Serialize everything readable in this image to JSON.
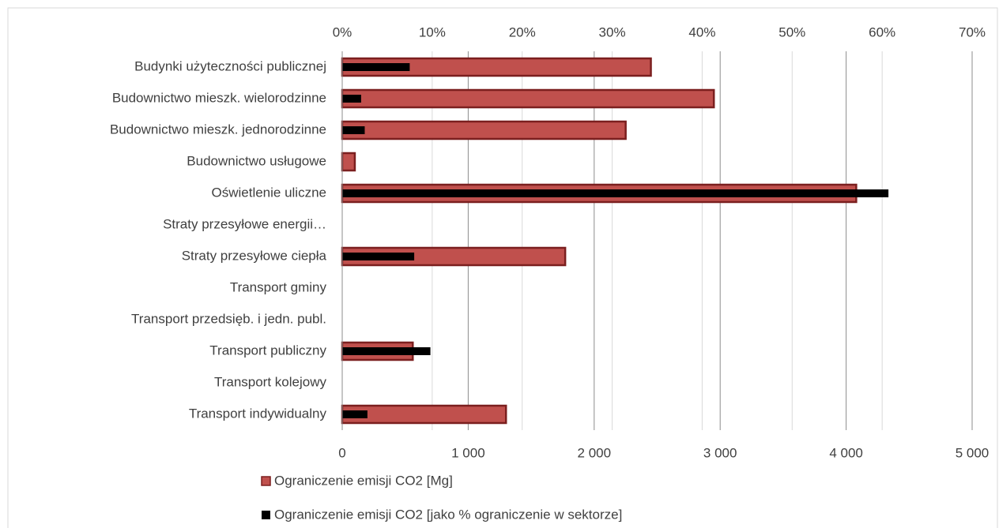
{
  "chart_data": {
    "type": "bar",
    "orientation": "horizontal",
    "categories": [
      "Budynki użyteczności publicznej",
      "Budownictwo mieszk. wielorodzinne",
      "Budownictwo mieszk. jednorodzinne",
      "Budownictwo usługowe",
      "Oświetlenie uliczne",
      "Straty przesyłowe energii…",
      "Straty przesyłowe ciepła",
      "Transport gminy",
      "Transport przedsięb. i jedn. publ.",
      "Transport publiczny",
      "Transport kolejowy",
      "Transport indywidualny"
    ],
    "series": [
      {
        "name": "Ograniczenie emisji CO2 [Mg]",
        "color": "#c0504d",
        "edge_color": "#7b1f1f",
        "axis": "x",
        "values": [
          2450,
          2950,
          2250,
          100,
          4080,
          null,
          1770,
          null,
          null,
          560,
          null,
          1300
        ]
      },
      {
        "name": "Ograniczenie emisji CO2 [jako % ograniczenie w sektorze]",
        "color": "#000000",
        "axis": "x2",
        "values": [
          7.5,
          2.1,
          2.5,
          null,
          60.7,
          null,
          8.0,
          null,
          null,
          9.8,
          null,
          2.8
        ]
      }
    ],
    "xlim": [
      0,
      5000
    ],
    "xticks": [
      0,
      {
        "value": 1000,
        "label": "1 000"
      },
      {
        "value": 2000,
        "label": "2 000"
      },
      {
        "value": 3000,
        "label": "3 000"
      },
      {
        "value": 4000,
        "label": "4 000"
      },
      {
        "value": 5000,
        "label": "5 000"
      }
    ],
    "x2lim": [
      0,
      70
    ],
    "x2ticks": [
      {
        "value": 0,
        "label": "0%"
      },
      {
        "value": 10,
        "label": "10%"
      },
      {
        "value": 20,
        "label": "20%"
      },
      {
        "value": 30,
        "label": "30%"
      },
      {
        "value": 40,
        "label": "40%"
      },
      {
        "value": 50,
        "label": "50%"
      },
      {
        "value": 60,
        "label": "60%"
      },
      {
        "value": 70,
        "label": "70%"
      }
    ],
    "grid": true,
    "legend": "bottom"
  }
}
